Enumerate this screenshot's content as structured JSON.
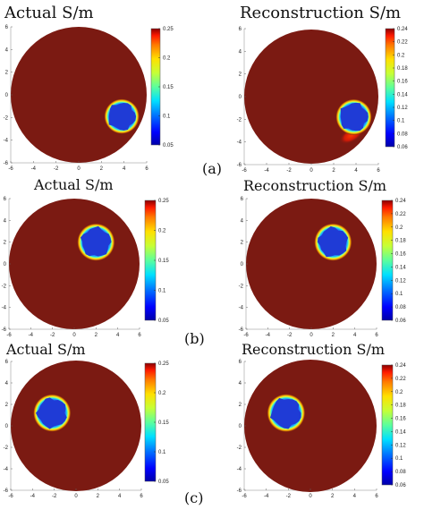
{
  "figure": {
    "row_labels": [
      "(a)",
      "(b)",
      "(c)"
    ]
  },
  "colors": {
    "background_conductivity": "#7b1a12",
    "inclusion_core": "#1f3bd6",
    "colormap": [
      "#0000a8",
      "#0000ff",
      "#0070ff",
      "#00e0ff",
      "#5cff9c",
      "#c6ff36",
      "#ffe000",
      "#ff7a00",
      "#ff1a00",
      "#8a0000"
    ]
  },
  "chart_data": [
    {
      "type": "heatmap",
      "row": "(a)",
      "panel": "actual",
      "title": "Actual  S/m",
      "x_ticks": [
        "-6",
        "-4",
        "-2",
        "0",
        "2",
        "4",
        "6"
      ],
      "y_ticks": [
        "6",
        "4",
        "2",
        "0",
        "-2",
        "-4",
        "-6"
      ],
      "xlim": [
        -6,
        6
      ],
      "ylim": [
        -6,
        6
      ],
      "domain": {
        "shape": "disk",
        "center": [
          0,
          0
        ],
        "radius": 6,
        "value": 0.25
      },
      "inclusion": {
        "center": [
          3.8,
          -1.9
        ],
        "radius": 1.3,
        "value": 0.05
      },
      "colorbar": {
        "min": 0.05,
        "max": 0.25,
        "ticks": [
          "0.25",
          "0.2",
          "0.15",
          "0.1",
          "0.05"
        ]
      }
    },
    {
      "type": "heatmap",
      "row": "(a)",
      "panel": "reconstruction",
      "title": "Reconstruction  S/m",
      "x_ticks": [
        "-6",
        "-4",
        "-2",
        "0",
        "2",
        "4",
        "6"
      ],
      "y_ticks": [
        "6",
        "4",
        "2",
        "0",
        "-2",
        "-4",
        "-6"
      ],
      "xlim": [
        -6,
        6
      ],
      "ylim": [
        -6,
        6
      ],
      "domain": {
        "shape": "disk",
        "center": [
          0,
          0
        ],
        "radius": 6,
        "value": 0.24
      },
      "inclusion": {
        "center": [
          3.8,
          -1.8
        ],
        "radius": 1.35,
        "value": 0.07
      },
      "artifact": {
        "center": [
          3.6,
          -3.4
        ],
        "rx": 1.2,
        "ry": 0.6,
        "value": 0.2
      },
      "colorbar": {
        "min": 0.06,
        "max": 0.24,
        "ticks": [
          "0.24",
          "0.22",
          "0.2",
          "0.18",
          "0.16",
          "0.14",
          "0.12",
          "0.1",
          "0.08",
          "0.06"
        ]
      }
    },
    {
      "type": "heatmap",
      "row": "(b)",
      "panel": "actual",
      "title": "Actual  S/m",
      "x_ticks": [
        "-6",
        "-4",
        "-2",
        "0",
        "2",
        "4",
        "6"
      ],
      "y_ticks": [
        "6",
        "4",
        "2",
        "0",
        "-2",
        "-4",
        "-6"
      ],
      "xlim": [
        -6,
        6
      ],
      "ylim": [
        -6,
        6
      ],
      "domain": {
        "shape": "disk",
        "center": [
          0,
          0
        ],
        "radius": 6,
        "value": 0.25
      },
      "inclusion": {
        "center": [
          2,
          2
        ],
        "radius": 1.45,
        "value": 0.05
      },
      "colorbar": {
        "min": 0.05,
        "max": 0.25,
        "ticks": [
          "0.25",
          "0.2",
          "0.15",
          "0.1",
          "0.05"
        ]
      }
    },
    {
      "type": "heatmap",
      "row": "(b)",
      "panel": "reconstruction",
      "title": "Reconstruction  S/m",
      "x_ticks": [
        "-6",
        "-4",
        "-2",
        "0",
        "2",
        "4",
        "6"
      ],
      "y_ticks": [
        "6",
        "4",
        "2",
        "0",
        "-2",
        "-4",
        "-6"
      ],
      "xlim": [
        -6,
        6
      ],
      "ylim": [
        -6,
        6
      ],
      "domain": {
        "shape": "disk",
        "center": [
          0,
          0
        ],
        "radius": 6,
        "value": 0.24
      },
      "inclusion": {
        "center": [
          2,
          2
        ],
        "radius": 1.45,
        "value": 0.07
      },
      "colorbar": {
        "min": 0.06,
        "max": 0.24,
        "ticks": [
          "0.24",
          "0.22",
          "0.2",
          "0.18",
          "0.16",
          "0.14",
          "0.12",
          "0.1",
          "0.08",
          "0.06"
        ]
      }
    },
    {
      "type": "heatmap",
      "row": "(c)",
      "panel": "actual",
      "title": "Actual  S/m",
      "x_ticks": [
        "-6",
        "-4",
        "-2",
        "0",
        "2",
        "4",
        "6"
      ],
      "y_ticks": [
        "6",
        "4",
        "2",
        "0",
        "-2",
        "-4",
        "-6"
      ],
      "xlim": [
        -6,
        6
      ],
      "ylim": [
        -6,
        6
      ],
      "domain": {
        "shape": "disk",
        "center": [
          0,
          0
        ],
        "radius": 6,
        "value": 0.25
      },
      "inclusion": {
        "center": [
          -2.2,
          1.2
        ],
        "radius": 1.45,
        "value": 0.05
      },
      "colorbar": {
        "min": 0.05,
        "max": 0.25,
        "ticks": [
          "0.25",
          "0.2",
          "0.15",
          "0.1",
          "0.05"
        ]
      }
    },
    {
      "type": "heatmap",
      "row": "(c)",
      "panel": "reconstruction",
      "title": "Reconstruction  S/m",
      "x_ticks": [
        "-6",
        "-4",
        "-2",
        "0",
        "2",
        "4",
        "6"
      ],
      "y_ticks": [
        "6",
        "4",
        "2",
        "0",
        "-2",
        "-4",
        "-6"
      ],
      "xlim": [
        -6,
        6
      ],
      "ylim": [
        -6,
        6
      ],
      "domain": {
        "shape": "disk",
        "center": [
          0,
          0
        ],
        "radius": 6,
        "value": 0.24
      },
      "inclusion": {
        "center": [
          -2.2,
          1.2
        ],
        "radius": 1.45,
        "value": 0.07
      },
      "colorbar": {
        "min": 0.06,
        "max": 0.24,
        "ticks": [
          "0.24",
          "0.22",
          "0.2",
          "0.18",
          "0.16",
          "0.14",
          "0.12",
          "0.1",
          "0.08",
          "0.06"
        ]
      }
    }
  ]
}
